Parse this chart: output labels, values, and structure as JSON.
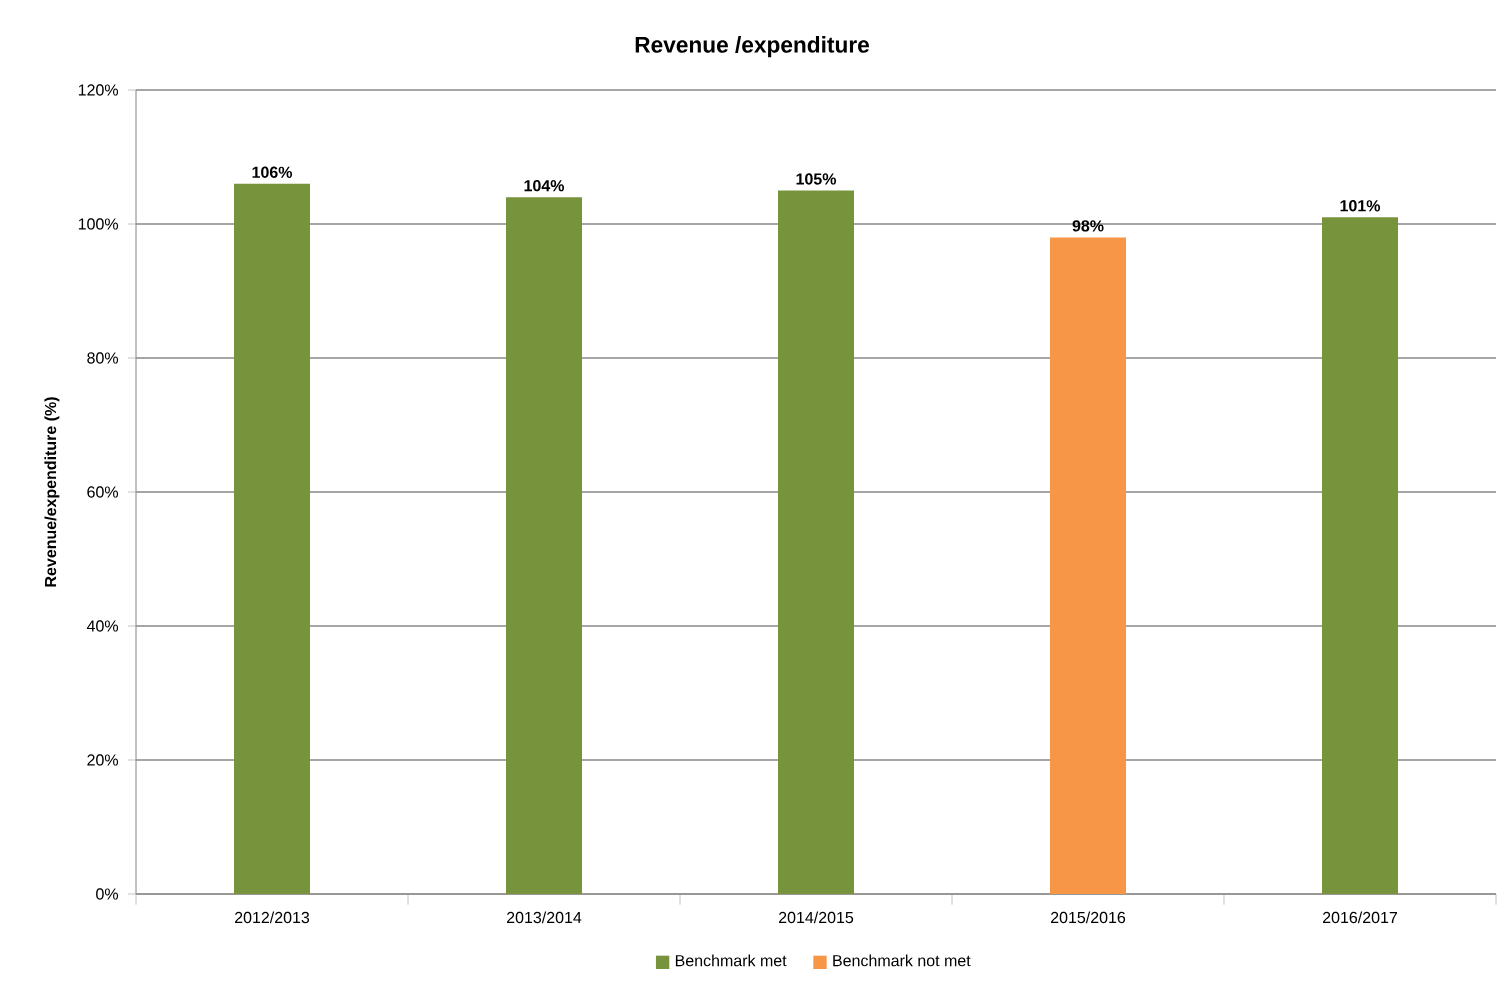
{
  "chart_data": {
    "type": "bar",
    "title": "Revenue /expenditure",
    "ylabel": "Revenue/expenditure (%)",
    "categories": [
      "2012/2013",
      "2013/2014",
      "2014/2015",
      "2015/2016",
      "2016/2017"
    ],
    "series": [
      {
        "name": "Benchmark met",
        "color": "#77933c",
        "values": [
          106,
          104,
          105,
          null,
          101
        ],
        "value_labels": [
          "106%",
          "104%",
          "105%",
          null,
          "101%"
        ]
      },
      {
        "name": "Benchmark not met",
        "color": "#f79646",
        "values": [
          null,
          null,
          null,
          98,
          null
        ],
        "value_labels": [
          null,
          null,
          null,
          "98%",
          null
        ]
      }
    ],
    "ylim": [
      0,
      120
    ],
    "yticks": [
      {
        "value": 0,
        "label": "0%"
      },
      {
        "value": 20,
        "label": "20%"
      },
      {
        "value": 40,
        "label": "40%"
      },
      {
        "value": 60,
        "label": "60%"
      },
      {
        "value": 80,
        "label": "80%"
      },
      {
        "value": 100,
        "label": "100%"
      },
      {
        "value": 120,
        "label": "120%"
      }
    ],
    "grid": "y",
    "legend": "bottom"
  }
}
